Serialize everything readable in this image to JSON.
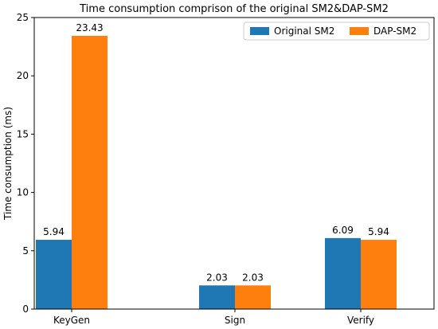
{
  "chart_data": {
    "type": "bar",
    "title": "Time consumption comprison of the original SM2&DAP-SM2",
    "xlabel": "",
    "ylabel": "Time consumption (ms)",
    "categories": [
      "KeyGen",
      "Sign",
      "Verify"
    ],
    "series": [
      {
        "name": "Original SM2",
        "values": [
          5.94,
          2.03,
          6.09
        ],
        "color": "#1f77b4"
      },
      {
        "name": "DAP-SM2",
        "values": [
          23.43,
          2.03,
          5.94
        ],
        "color": "#ff7f0e"
      }
    ],
    "ylim": [
      0,
      25
    ],
    "yticks": [
      0,
      5,
      10,
      15,
      20,
      25
    ],
    "grid": false,
    "legend_position": "top-right",
    "data_labels": true
  }
}
